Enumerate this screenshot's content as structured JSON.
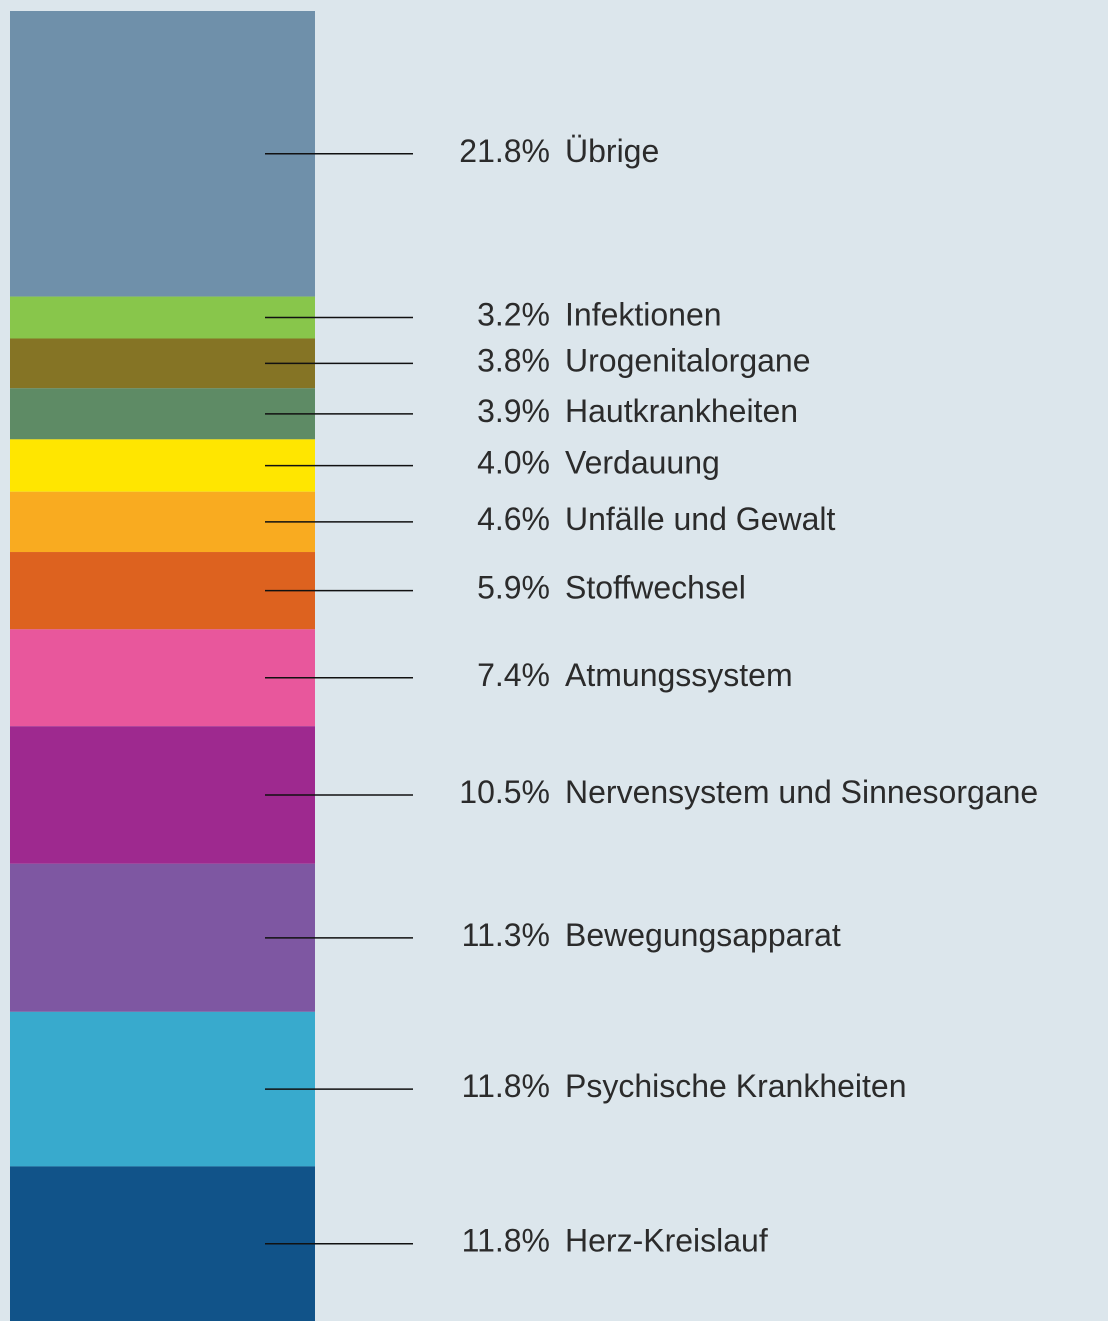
{
  "chart_data": {
    "type": "stacked-bar",
    "categories": [
      "Übrige",
      "Infektionen",
      "Urogenitalorgane",
      "Hautkrankheiten",
      "Verdauung",
      "Unfälle und Gewalt",
      "Stoffwechsel",
      "Atmungssystem",
      "Nervensystem und Sinnesorgane",
      "Bewegungsapparat",
      "Psychische Krankheiten",
      "Herz-Kreislauf"
    ],
    "values": [
      21.8,
      3.2,
      3.8,
      3.9,
      4.0,
      4.6,
      5.9,
      7.4,
      10.5,
      11.3,
      11.8,
      11.8
    ],
    "value_labels": [
      "21.8%",
      "3.2%",
      "3.8%",
      "3.9%",
      "4.0%",
      "4.6%",
      "5.9%",
      "7.4%",
      "10.5%",
      "11.3%",
      "11.8%",
      "11.8%"
    ],
    "colors": [
      "#6f90aa",
      "#88c64b",
      "#857425",
      "#5e8b65",
      "#ffe600",
      "#f9ab20",
      "#dd621f",
      "#e8579c",
      "#9e298f",
      "#7e57a2",
      "#38aacd",
      "#115389"
    ]
  }
}
